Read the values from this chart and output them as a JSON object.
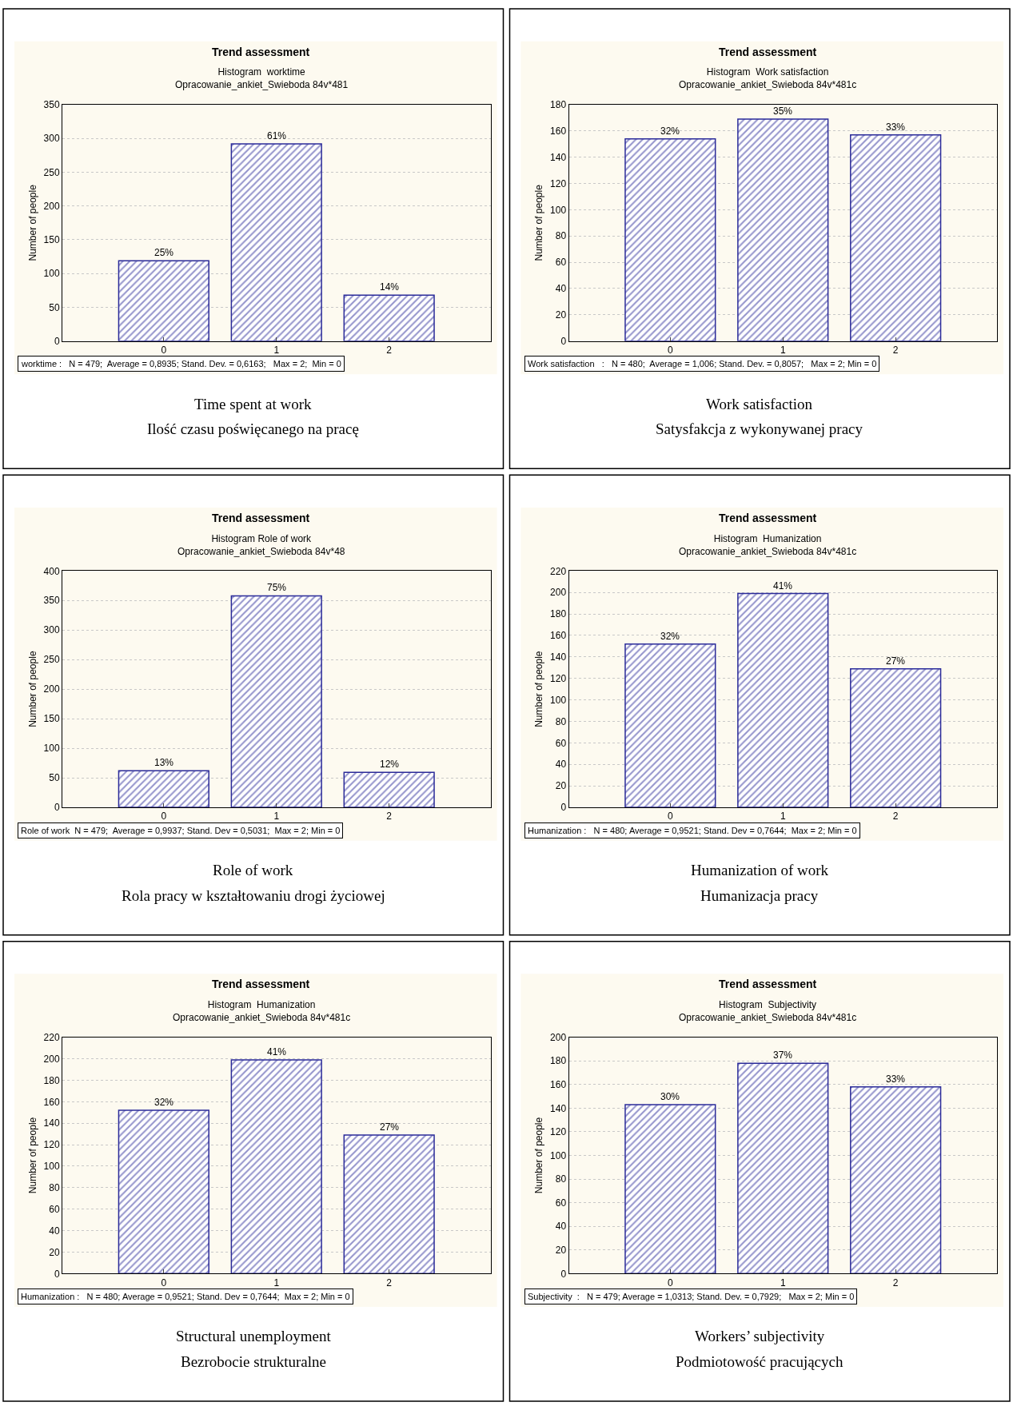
{
  "chart_data": [
    {
      "type": "bar",
      "title": "Trend assessment",
      "subtitle": "Histogram  worktime\nOpracowanie_ankiet_Swieboda 84v*481",
      "ylabel": "Number of people",
      "categories": [
        "0",
        "1",
        "2"
      ],
      "values": [
        119,
        292,
        68
      ],
      "color": "#2b2b99",
      "ylim": [
        0,
        350
      ],
      "yticks": [
        0,
        50,
        100,
        150,
        200,
        250,
        300,
        350
      ],
      "grid": "y",
      "legend": false,
      "annotations": [
        "worktime :   N = 479;  Average = 0,8935; Stand. Dev. = 0,6163;   Max = 2;  Min = 0",
        "Time spent at work",
        "Ilość czasu poświęcanego na pracę",
        {
          "text": "25%",
          "x": "0",
          "y": 119
        },
        {
          "text": "61%",
          "x": "1",
          "y": 292
        },
        {
          "text": "14%",
          "x": "2",
          "y": 68
        }
      ]
    },
    {
      "type": "bar",
      "title": "Trend assessment",
      "subtitle": "Histogram  Work satisfaction\nOpracowanie_ankiet_Swieboda 84v*481c",
      "ylabel": "Number of people",
      "categories": [
        "0",
        "1",
        "2"
      ],
      "values": [
        154,
        169,
        157
      ],
      "color": "#2b2b99",
      "ylim": [
        0,
        180
      ],
      "yticks": [
        0,
        20,
        40,
        60,
        80,
        100,
        120,
        140,
        160,
        180
      ],
      "grid": "y",
      "legend": false,
      "annotations": [
        "Work satisfaction   :   N = 480;  Average = 1,006; Stand. Dev. = 0,8057;   Max = 2; Min = 0",
        "Work satisfaction",
        "Satysfakcja z wykonywanej pracy",
        {
          "text": "32%",
          "x": "0",
          "y": 154
        },
        {
          "text": "35%",
          "x": "1",
          "y": 169
        },
        {
          "text": "33%",
          "x": "2",
          "y": 157
        }
      ]
    },
    {
      "type": "bar",
      "title": "Trend assessment",
      "subtitle": "Histogram Role of work\nOpracowanie_ankiet_Swieboda 84v*48",
      "ylabel": "Number of people",
      "categories": [
        "0",
        "1",
        "2"
      ],
      "values": [
        62,
        358,
        59
      ],
      "color": "#2b2b99",
      "ylim": [
        0,
        400
      ],
      "yticks": [
        0,
        50,
        100,
        150,
        200,
        250,
        300,
        350,
        400
      ],
      "grid": "y",
      "legend": false,
      "annotations": [
        "Role of work  N = 479;  Average = 0,9937; Stand. Dev = 0,5031;  Max = 2; Min = 0",
        "Role of work",
        "Rola pracy w kształtowaniu drogi życiowej",
        {
          "text": "13%",
          "x": "0",
          "y": 62
        },
        {
          "text": "75%",
          "x": "1",
          "y": 358
        },
        {
          "text": "12%",
          "x": "2",
          "y": 59
        }
      ]
    },
    {
      "type": "bar",
      "title": "Trend assessment",
      "subtitle": "Histogram  Humanization\nOpracowanie_ankiet_Swieboda 84v*481c",
      "ylabel": "Number of people",
      "categories": [
        "0",
        "1",
        "2"
      ],
      "values": [
        152,
        199,
        129
      ],
      "color": "#2b2b99",
      "ylim": [
        0,
        220
      ],
      "yticks": [
        0,
        20,
        40,
        60,
        80,
        100,
        120,
        140,
        160,
        180,
        200,
        220
      ],
      "grid": "y",
      "legend": false,
      "annotations": [
        "Humanization :   N = 480; Average = 0,9521; Stand. Dev = 0,7644;  Max = 2; Min = 0",
        "Humanization of work",
        "Humanizacja pracy",
        {
          "text": "32%",
          "x": "0",
          "y": 152
        },
        {
          "text": "41%",
          "x": "1",
          "y": 199
        },
        {
          "text": "27%",
          "x": "2",
          "y": 129
        }
      ]
    },
    {
      "type": "bar",
      "title": "Trend assessment",
      "subtitle": "Histogram  Humanization\nOpracowanie_ankiet_Swieboda 84v*481c",
      "ylabel": "Number of people",
      "categories": [
        "0",
        "1",
        "2"
      ],
      "values": [
        152,
        199,
        129
      ],
      "color": "#2b2b99",
      "ylim": [
        0,
        220
      ],
      "yticks": [
        0,
        20,
        40,
        60,
        80,
        100,
        120,
        140,
        160,
        180,
        200,
        220
      ],
      "grid": "y",
      "legend": false,
      "annotations": [
        "Humanization :   N = 480; Average = 0,9521; Stand. Dev = 0,7644;  Max = 2; Min = 0",
        "Structural unemployment",
        "Bezrobocie strukturalne",
        {
          "text": "32%",
          "x": "0",
          "y": 152
        },
        {
          "text": "41%",
          "x": "1",
          "y": 199
        },
        {
          "text": "27%",
          "x": "2",
          "y": 129
        }
      ]
    },
    {
      "type": "bar",
      "title": "Trend assessment",
      "subtitle": "Histogram  Subjectivity\nOpracowanie_ankiet_Swieboda 84v*481c",
      "ylabel": "Number of people",
      "categories": [
        "0",
        "1",
        "2"
      ],
      "values": [
        143,
        178,
        158
      ],
      "color": "#2b2b99",
      "ylim": [
        0,
        200
      ],
      "yticks": [
        0,
        20,
        40,
        60,
        80,
        100,
        120,
        140,
        160,
        180,
        200
      ],
      "grid": "y",
      "legend": false,
      "annotations": [
        "Subjectivity  :   N = 479; Average = 1,0313; Stand. Dev. = 0,7929;   Max = 2; Min = 0",
        "Workers’ subjectivity",
        "Podmiotowość pracujących",
        {
          "text": "30%",
          "x": "0",
          "y": 143
        },
        {
          "text": "37%",
          "x": "1",
          "y": 178
        },
        {
          "text": "33%",
          "x": "2",
          "y": 158
        }
      ]
    }
  ]
}
